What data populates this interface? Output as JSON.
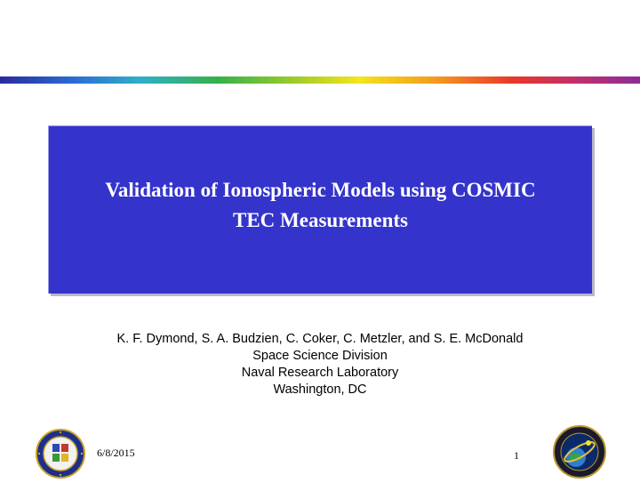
{
  "slide": {
    "title_lines": [
      "Validation of Ionospheric Models using COSMIC",
      "TEC Measurements"
    ],
    "authors": "K. F. Dymond, S. A. Budzien, C. Coker, C. Metzler, and S. E. McDonald",
    "division": "Space Science Division",
    "laboratory": "Naval Research Laboratory",
    "location": "Washington, DC",
    "date": "6/8/2015",
    "page_number": "1"
  },
  "colors": {
    "title_background": "#3434cc",
    "title_text": "#ffffff"
  },
  "icons": {
    "left_logo": "naval-research-laboratory-seal",
    "right_logo": "space-science-division-emblem"
  }
}
